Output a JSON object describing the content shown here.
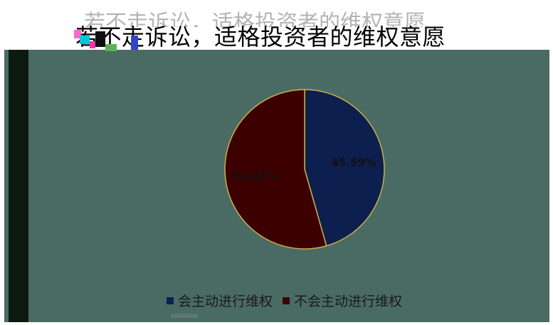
{
  "colors": {
    "plot_background": "#4a6b64",
    "left_strip": "#0c1a0f",
    "slice_active": "#0d1f4f",
    "slice_inactive": "#3d0000",
    "slice_border": "#c9b04a",
    "label_text": "#111111"
  },
  "chart_data": {
    "type": "pie",
    "title": "若不走诉讼，适格投资者的维权意愿",
    "categories": [
      "会主动进行维权",
      "不会主动进行维权"
    ],
    "values": [
      45.59,
      54.41
    ],
    "labels": [
      "45.59%",
      "54.41%"
    ],
    "legend_position": "bottom"
  }
}
